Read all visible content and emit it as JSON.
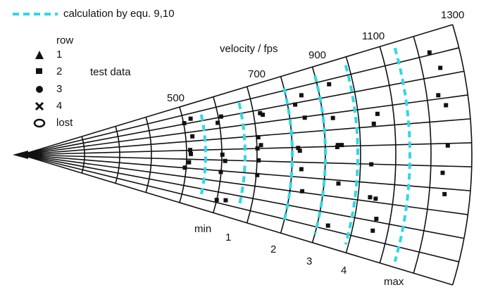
{
  "legend": {
    "calculation": "calculation by equ. 9,10",
    "row_title": "row",
    "rows": [
      "1",
      "2",
      "3",
      "4",
      "lost"
    ],
    "test_data": "test data"
  },
  "axis_title": "velocity / fps",
  "velocity_labels": [
    "500",
    "700",
    "900",
    "1100",
    "1300"
  ],
  "curve_labels": [
    "min",
    "1",
    "2",
    "3",
    "4",
    "max"
  ]
}
